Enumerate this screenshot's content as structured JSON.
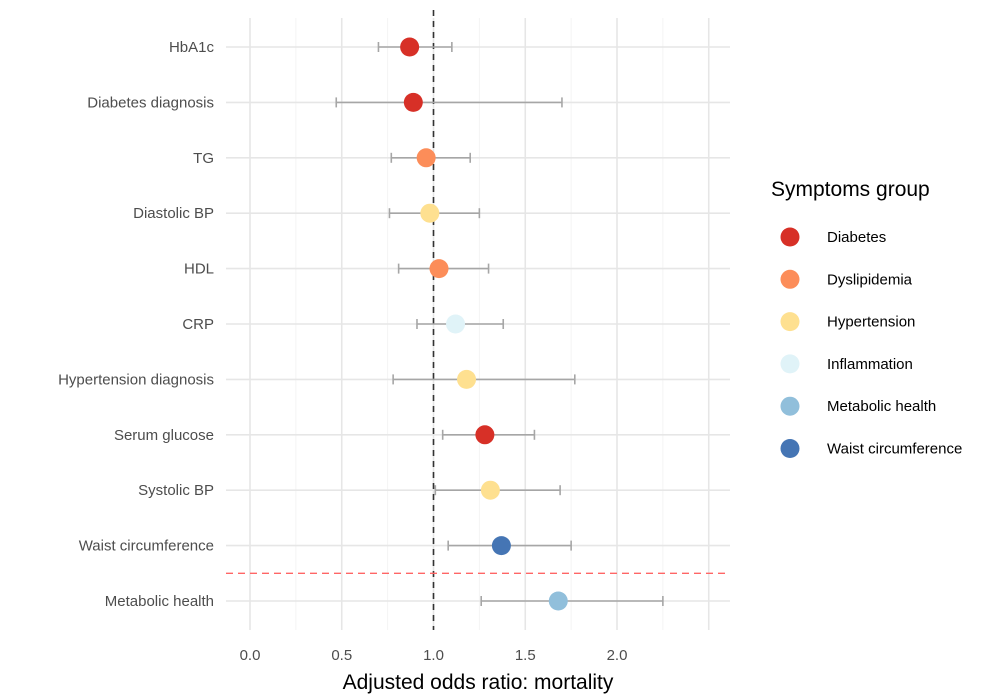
{
  "chart_data": {
    "type": "scatter",
    "subtype": "forest-plot",
    "xlabel": "Adjusted odds ratio: mortality",
    "ylabel": "",
    "xlim": [
      -0.05,
      2.6
    ],
    "xticks": [
      0.0,
      0.5,
      1.0,
      1.5,
      2.0
    ],
    "xtick_labels": [
      "0.0",
      "0.5",
      "1.0",
      "1.5",
      "2.0"
    ],
    "reference_line": 1.0,
    "grid": true,
    "legend": {
      "title": "Symptoms group",
      "position": "right",
      "entries": [
        {
          "label": "Diabetes",
          "color": "#d73027"
        },
        {
          "label": "Dyslipidemia",
          "color": "#fc8d59"
        },
        {
          "label": "Hypertension",
          "color": "#fee090"
        },
        {
          "label": "Inflammation",
          "color": "#e0f3f8"
        },
        {
          "label": "Metabolic health",
          "color": "#91bfdb"
        },
        {
          "label": "Waist circumference",
          "color": "#4575b4"
        }
      ]
    },
    "rows": [
      {
        "label": "HbA1c",
        "estimate": 0.87,
        "lower": 0.7,
        "upper": 1.1,
        "group": "Diabetes"
      },
      {
        "label": "Diabetes diagnosis",
        "estimate": 0.89,
        "lower": 0.47,
        "upper": 1.7,
        "group": "Diabetes"
      },
      {
        "label": "TG",
        "estimate": 0.96,
        "lower": 0.77,
        "upper": 1.2,
        "group": "Dyslipidemia"
      },
      {
        "label": "Diastolic BP",
        "estimate": 0.98,
        "lower": 0.76,
        "upper": 1.25,
        "group": "Hypertension"
      },
      {
        "label": "HDL",
        "estimate": 1.03,
        "lower": 0.81,
        "upper": 1.3,
        "group": "Dyslipidemia"
      },
      {
        "label": "CRP",
        "estimate": 1.12,
        "lower": 0.91,
        "upper": 1.38,
        "group": "Inflammation"
      },
      {
        "label": "Hypertension diagnosis",
        "estimate": 1.18,
        "lower": 0.78,
        "upper": 1.77,
        "group": "Hypertension"
      },
      {
        "label": "Serum glucose",
        "estimate": 1.28,
        "lower": 1.05,
        "upper": 1.55,
        "group": "Diabetes"
      },
      {
        "label": "Systolic BP",
        "estimate": 1.31,
        "lower": 1.01,
        "upper": 1.69,
        "group": "Hypertension"
      },
      {
        "label": "Waist circumference",
        "estimate": 1.37,
        "lower": 1.08,
        "upper": 1.75,
        "group": "Waist circumference"
      },
      {
        "label": "Metabolic health",
        "estimate": 1.68,
        "lower": 1.26,
        "upper": 2.25,
        "group": "Metabolic health"
      }
    ],
    "separator_line_color": "#ff6666"
  }
}
